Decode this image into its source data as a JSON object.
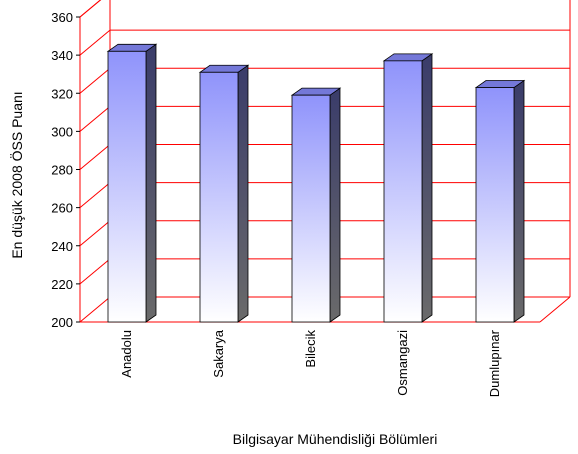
{
  "chart_data": {
    "type": "bar",
    "style": "3d-column",
    "categories": [
      "Anadolu",
      "Sakarya",
      "Bilecik",
      "Osmangazi",
      "Dumlupınar"
    ],
    "values": [
      342,
      331,
      319,
      337,
      323
    ],
    "xlabel": "Bilgisayar Mühendisliği Bölümleri",
    "ylabel": "En düşük 2008 ÖSS Puanı",
    "ylim": [
      200,
      360
    ],
    "yticks": [
      200,
      220,
      240,
      260,
      280,
      300,
      320,
      340,
      360
    ],
    "grid": true,
    "legend": "none",
    "colors": {
      "grid": "#ff0000",
      "bar_top_gradient": "#8f93fb",
      "bar_bottom_gradient": "#ffffff",
      "bar_side": "#3f4170",
      "bar_top": "#7478d8"
    }
  }
}
